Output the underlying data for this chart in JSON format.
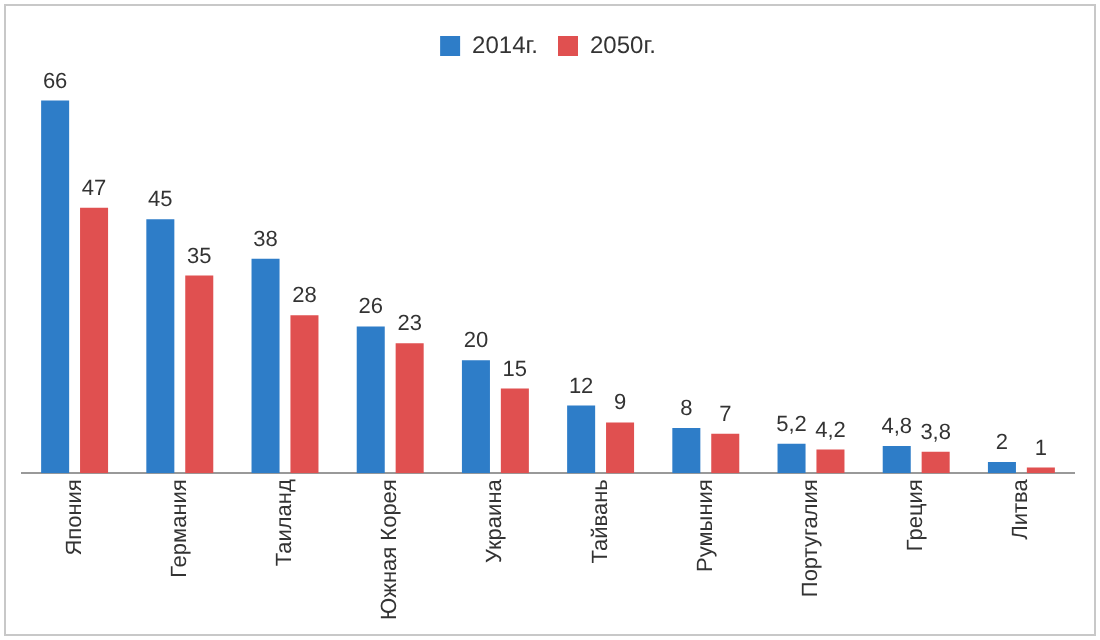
{
  "chart_data": {
    "type": "bar",
    "categories": [
      "Япония",
      "Германия",
      "Таиланд",
      "Южная Корея",
      "Украина",
      "Тайвань",
      "Румыния",
      "Португалия",
      "Греция",
      "Литва"
    ],
    "series": [
      {
        "name": "2014г.",
        "color": "#2e7dc8",
        "values": [
          66,
          45,
          38,
          26,
          20,
          12,
          8,
          5.2,
          4.8,
          2
        ],
        "value_labels": [
          "66",
          "45",
          "38",
          "26",
          "20",
          "12",
          "8",
          "5,2",
          "4,8",
          "2"
        ]
      },
      {
        "name": "2050г.",
        "color": "#e05050",
        "values": [
          47,
          35,
          28,
          23,
          15,
          9,
          7,
          4.2,
          3.8,
          1
        ],
        "value_labels": [
          "47",
          "35",
          "28",
          "23",
          "15",
          "9",
          "7",
          "4,2",
          "3,8",
          "1"
        ]
      }
    ],
    "legend": "top",
    "grid": false
  }
}
